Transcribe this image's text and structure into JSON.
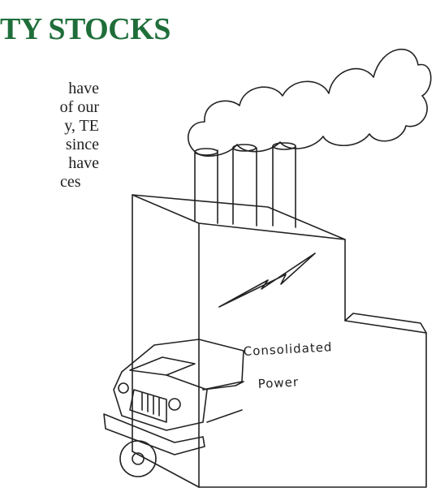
{
  "header": {
    "title": "TY STOCKS"
  },
  "body": {
    "lines": [
      "have",
      "of our",
      "y, TE",
      "since",
      "have",
      "ces"
    ]
  },
  "illustration": {
    "sign_lines": [
      "Consolidated",
      "Power"
    ]
  }
}
